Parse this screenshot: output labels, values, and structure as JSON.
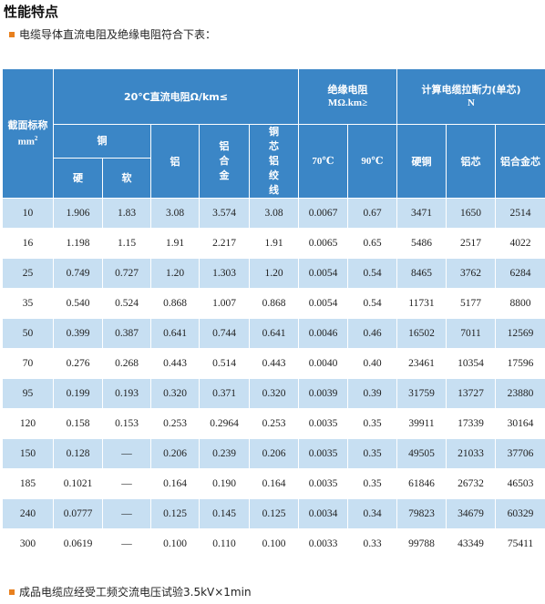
{
  "page": {
    "title": "性能特点",
    "note_top": "电缆导体直流电阻及绝缘电阻符合下表：",
    "note_bottom": "成品电缆应经受工频交流电压试验3.5kV×1min",
    "accent_color": "#e8801e",
    "header_color": "#3b86c6",
    "stripe_color": "#c7dff2",
    "bullet_icon": "orange-square-icon"
  },
  "table": {
    "header": {
      "section": "截面标称",
      "section_unit": "mm",
      "section_unit_sup": "2",
      "dc_resistance": "20℃直流电阻Ω/km≤",
      "copper": "铜",
      "hard": "硬",
      "soft": "软",
      "aluminum": "铝",
      "al_alloy": "铝合金",
      "cu_clad_al": "铜芯铝绞线",
      "insulation": "绝缘电阻",
      "insulation_unit": "MΩ.km≥",
      "t70": "70℃",
      "t90": "90℃",
      "tensile": "计算电缆拉断力(单芯)",
      "tensile_unit": "N",
      "hard_copper": "硬铜",
      "aluminum_core": "铝芯",
      "al_alloy_core": "铝合金芯"
    },
    "rows": [
      {
        "section": "10",
        "hard": "1.906",
        "soft": "1.83",
        "al": "3.08",
        "alloy": "3.574",
        "ccal": "3.08",
        "r70": "0.0067",
        "r90": "0.67",
        "t_cu": "3471",
        "t_al": "1650",
        "t_alloy": "2514"
      },
      {
        "section": "16",
        "hard": "1.198",
        "soft": "1.15",
        "al": "1.91",
        "alloy": "2.217",
        "ccal": "1.91",
        "r70": "0.0065",
        "r90": "0.65",
        "t_cu": "5486",
        "t_al": "2517",
        "t_alloy": "4022"
      },
      {
        "section": "25",
        "hard": "0.749",
        "soft": "0.727",
        "al": "1.20",
        "alloy": "1.303",
        "ccal": "1.20",
        "r70": "0.0054",
        "r90": "0.54",
        "t_cu": "8465",
        "t_al": "3762",
        "t_alloy": "6284"
      },
      {
        "section": "35",
        "hard": "0.540",
        "soft": "0.524",
        "al": "0.868",
        "alloy": "1.007",
        "ccal": "0.868",
        "r70": "0.0054",
        "r90": "0.54",
        "t_cu": "11731",
        "t_al": "5177",
        "t_alloy": "8800"
      },
      {
        "section": "50",
        "hard": "0.399",
        "soft": "0.387",
        "al": "0.641",
        "alloy": "0.744",
        "ccal": "0.641",
        "r70": "0.0046",
        "r90": "0.46",
        "t_cu": "16502",
        "t_al": "7011",
        "t_alloy": "12569"
      },
      {
        "section": "70",
        "hard": "0.276",
        "soft": "0.268",
        "al": "0.443",
        "alloy": "0.514",
        "ccal": "0.443",
        "r70": "0.0040",
        "r90": "0.40",
        "t_cu": "23461",
        "t_al": "10354",
        "t_alloy": "17596"
      },
      {
        "section": "95",
        "hard": "0.199",
        "soft": "0.193",
        "al": "0.320",
        "alloy": "0.371",
        "ccal": "0.320",
        "r70": "0.0039",
        "r90": "0.39",
        "t_cu": "31759",
        "t_al": "13727",
        "t_alloy": "23880"
      },
      {
        "section": "120",
        "hard": "0.158",
        "soft": "0.153",
        "al": "0.253",
        "alloy": "0.2964",
        "ccal": "0.253",
        "r70": "0.0035",
        "r90": "0.35",
        "t_cu": "39911",
        "t_al": "17339",
        "t_alloy": "30164"
      },
      {
        "section": "150",
        "hard": "0.128",
        "soft": "—",
        "al": "0.206",
        "alloy": "0.239",
        "ccal": "0.206",
        "r70": "0.0035",
        "r90": "0.35",
        "t_cu": "49505",
        "t_al": "21033",
        "t_alloy": "37706"
      },
      {
        "section": "185",
        "hard": "0.1021",
        "soft": "—",
        "al": "0.164",
        "alloy": "0.190",
        "ccal": "0.164",
        "r70": "0.0035",
        "r90": "0.35",
        "t_cu": "61846",
        "t_al": "26732",
        "t_alloy": "46503"
      },
      {
        "section": "240",
        "hard": "0.0777",
        "soft": "—",
        "al": "0.125",
        "alloy": "0.145",
        "ccal": "0.125",
        "r70": "0.0034",
        "r90": "0.34",
        "t_cu": "79823",
        "t_al": "34679",
        "t_alloy": "60329"
      },
      {
        "section": "300",
        "hard": "0.0619",
        "soft": "—",
        "al": "0.100",
        "alloy": "0.110",
        "ccal": "0.100",
        "r70": "0.0033",
        "r90": "0.33",
        "t_cu": "99788",
        "t_al": "43349",
        "t_alloy": "75411"
      }
    ]
  }
}
